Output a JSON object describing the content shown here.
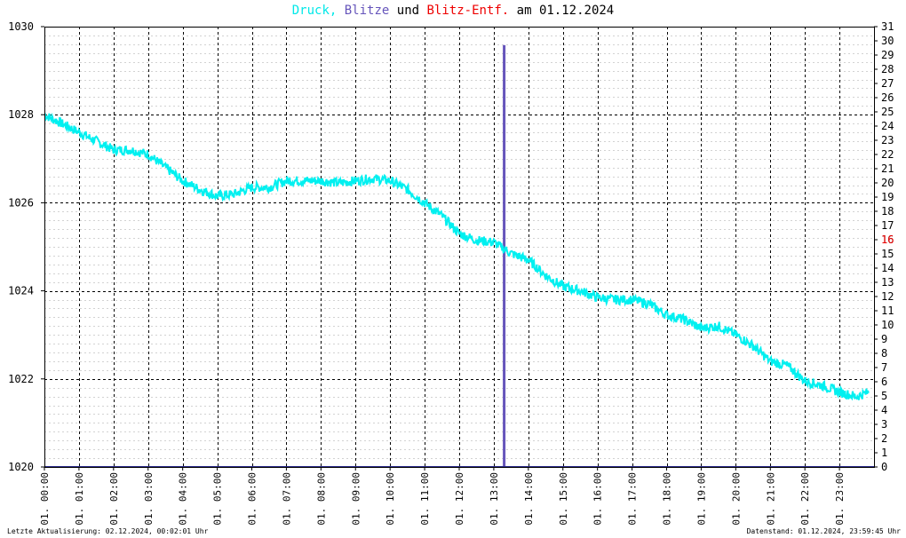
{
  "title": {
    "part_druck": "Druck,",
    "part_blitze": "Blitze",
    "part_und": "und",
    "part_blitz_entf": "Blitz-Entf.",
    "part_am": "am",
    "date": "01.12.2024"
  },
  "colors": {
    "druck": "#00f0f0",
    "blitze": "#6655bb",
    "blitz_entf": "#ee0000",
    "grid": "#000000",
    "frame": "#000000",
    "baseline": "#2a2a8a"
  },
  "footer": {
    "left": "Letzte Aktualisierung: 02.12.2024, 00:02:01 Uhr",
    "right": "Datenstand: 01.12.2024, 23:59:45 Uhr"
  },
  "chart_data": {
    "type": "line",
    "title": "Druck, Blitze und Blitz-Entf. am 01.12.2024",
    "xlabel": "",
    "ylabel": "",
    "x_range_hours": [
      0,
      24
    ],
    "y_left_range": [
      1020,
      1030
    ],
    "y_left_ticks": [
      "1020",
      "1022",
      "1024",
      "1026",
      "1028",
      "1030"
    ],
    "y_right_range": [
      0,
      31
    ],
    "y_right_ticks": [
      "0",
      "1",
      "2",
      "3",
      "4",
      "5",
      "6",
      "7",
      "8",
      "9",
      "10",
      "11",
      "12",
      "13",
      "14",
      "15",
      "16",
      "17",
      "18",
      "19",
      "20",
      "21",
      "22",
      "23",
      "24",
      "25",
      "26",
      "27",
      "28",
      "29",
      "30",
      "31"
    ],
    "x_tick_labels": [
      "01. 00:00",
      "01. 01:00",
      "01. 02:00",
      "01. 03:00",
      "01. 04:00",
      "01. 05:00",
      "01. 06:00",
      "01. 07:00",
      "01. 08:00",
      "01. 09:00",
      "01. 10:00",
      "01. 11:00",
      "01. 12:00",
      "01. 13:00",
      "01. 14:00",
      "01. 15:00",
      "01. 16:00",
      "01. 17:00",
      "01. 18:00",
      "01. 19:00",
      "01. 20:00",
      "01. 21:00",
      "01. 22:00",
      "01. 23:00"
    ],
    "grid": true,
    "series": [
      {
        "name": "Druck",
        "axis": "left",
        "color": "#00f0f0",
        "points": [
          [
            0.0,
            1028.0
          ],
          [
            0.5,
            1027.8
          ],
          [
            1.0,
            1027.6
          ],
          [
            1.5,
            1027.4
          ],
          [
            2.0,
            1027.2
          ],
          [
            2.5,
            1027.2
          ],
          [
            3.0,
            1027.1
          ],
          [
            3.5,
            1026.8
          ],
          [
            4.0,
            1026.5
          ],
          [
            4.5,
            1026.3
          ],
          [
            5.0,
            1026.15
          ],
          [
            5.5,
            1026.2
          ],
          [
            6.0,
            1026.35
          ],
          [
            6.5,
            1026.35
          ],
          [
            7.0,
            1026.5
          ],
          [
            7.5,
            1026.5
          ],
          [
            8.0,
            1026.5
          ],
          [
            8.5,
            1026.45
          ],
          [
            9.0,
            1026.5
          ],
          [
            9.5,
            1026.55
          ],
          [
            10.0,
            1026.5
          ],
          [
            10.5,
            1026.3
          ],
          [
            11.0,
            1026.0
          ],
          [
            11.5,
            1025.7
          ],
          [
            12.0,
            1025.3
          ],
          [
            12.5,
            1025.15
          ],
          [
            13.0,
            1025.1
          ],
          [
            13.5,
            1024.85
          ],
          [
            14.0,
            1024.7
          ],
          [
            14.5,
            1024.35
          ],
          [
            15.0,
            1024.1
          ],
          [
            15.5,
            1024.0
          ],
          [
            16.0,
            1023.85
          ],
          [
            16.5,
            1023.8
          ],
          [
            17.0,
            1023.8
          ],
          [
            17.5,
            1023.7
          ],
          [
            18.0,
            1023.45
          ],
          [
            18.5,
            1023.35
          ],
          [
            19.0,
            1023.15
          ],
          [
            19.5,
            1023.2
          ],
          [
            20.0,
            1023.0
          ],
          [
            20.5,
            1022.75
          ],
          [
            21.0,
            1022.4
          ],
          [
            21.5,
            1022.3
          ],
          [
            22.0,
            1021.95
          ],
          [
            22.5,
            1021.85
          ],
          [
            23.0,
            1021.7
          ],
          [
            23.5,
            1021.6
          ],
          [
            23.85,
            1021.7
          ]
        ]
      },
      {
        "name": "Blitze",
        "axis": "right",
        "color": "#6655bb",
        "type": "bar",
        "points": [
          [
            13.3,
            29.7
          ]
        ]
      }
    ],
    "markers": [
      {
        "name": "Blitz-Entf.",
        "axis": "right",
        "color": "#ee0000",
        "value_label": "16"
      }
    ]
  }
}
